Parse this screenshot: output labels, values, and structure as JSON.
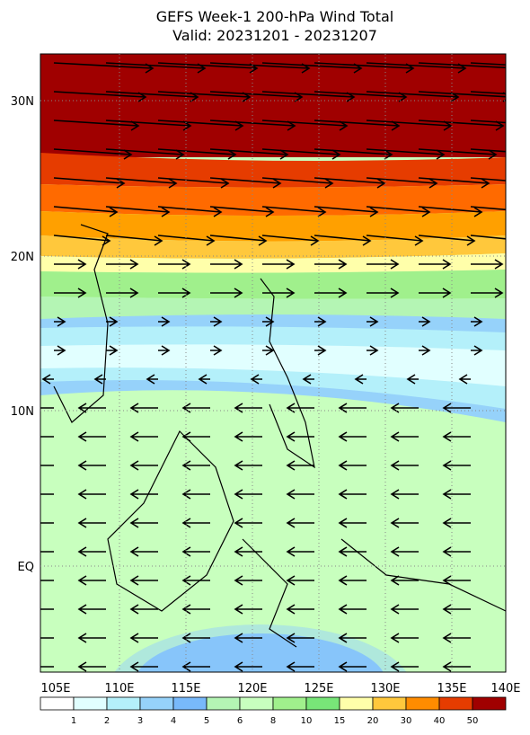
{
  "header": {
    "title": "GEFS Week-1 200-hPa Wind Total",
    "subtitle": "Valid: 20231201 - 20231207"
  },
  "axes": {
    "lon_labels": [
      "105E",
      "110E",
      "115E",
      "120E",
      "125E",
      "130E",
      "135E",
      "140E"
    ],
    "lat_labels": [
      "30N",
      "20N",
      "10N",
      "EQ"
    ]
  },
  "colorbar": {
    "levels": [
      "1",
      "2",
      "3",
      "4",
      "5",
      "6",
      "8",
      "10",
      "15",
      "20",
      "30",
      "40",
      "50"
    ],
    "colors": [
      "#ffffff",
      "#e1ffff",
      "#b4f0fa",
      "#96d2fa",
      "#78b9fa",
      "#b4f5b4",
      "#c8ffbe",
      "#a0f08c",
      "#78e678",
      "#ffffaa",
      "#ffc83c",
      "#ff8c00",
      "#e63c00",
      "#a00000"
    ]
  }
}
